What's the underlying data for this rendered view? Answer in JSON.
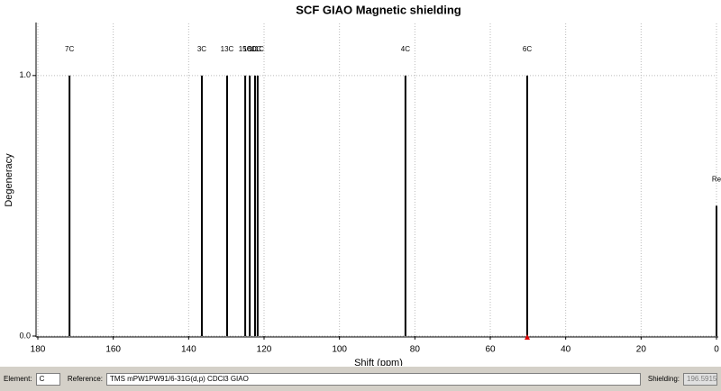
{
  "chart_data": {
    "type": "stick",
    "title": "SCF GIAO Magnetic shielding",
    "x_label": "Shift (ppm)",
    "y_label": "Degeneracy",
    "x": [
      171.6,
      136.5,
      129.8,
      125.0,
      123.8,
      122.4,
      121.7,
      82.5,
      50.2,
      0.0
    ],
    "values": [
      1.0,
      1.0,
      1.0,
      1.0,
      1.0,
      1.0,
      1.0,
      1.0,
      1.0,
      0.5
    ],
    "labels": [
      "7C",
      "3C",
      "13C",
      "15C",
      "16C",
      "10C",
      "11C",
      "4C",
      "6C",
      "Re"
    ],
    "color": "#000000",
    "xlim": [
      180,
      0
    ],
    "xticks": [
      180,
      160,
      140,
      120,
      100,
      80,
      60,
      40,
      20,
      0
    ],
    "ylim": [
      0,
      1.2
    ],
    "yticks": [
      {
        "value": 0,
        "label": "0.0"
      },
      {
        "value": 1,
        "label": "1.0"
      }
    ],
    "grid": true
  },
  "toolbar": {
    "element_label": "Element:",
    "element": "C",
    "reference_label": "Reference:",
    "reference": "TMS mPW1PW91/6-31G(d,p) CDCl3 GIAO",
    "shielding_label": "Shielding:",
    "shielding": "196.5915"
  }
}
